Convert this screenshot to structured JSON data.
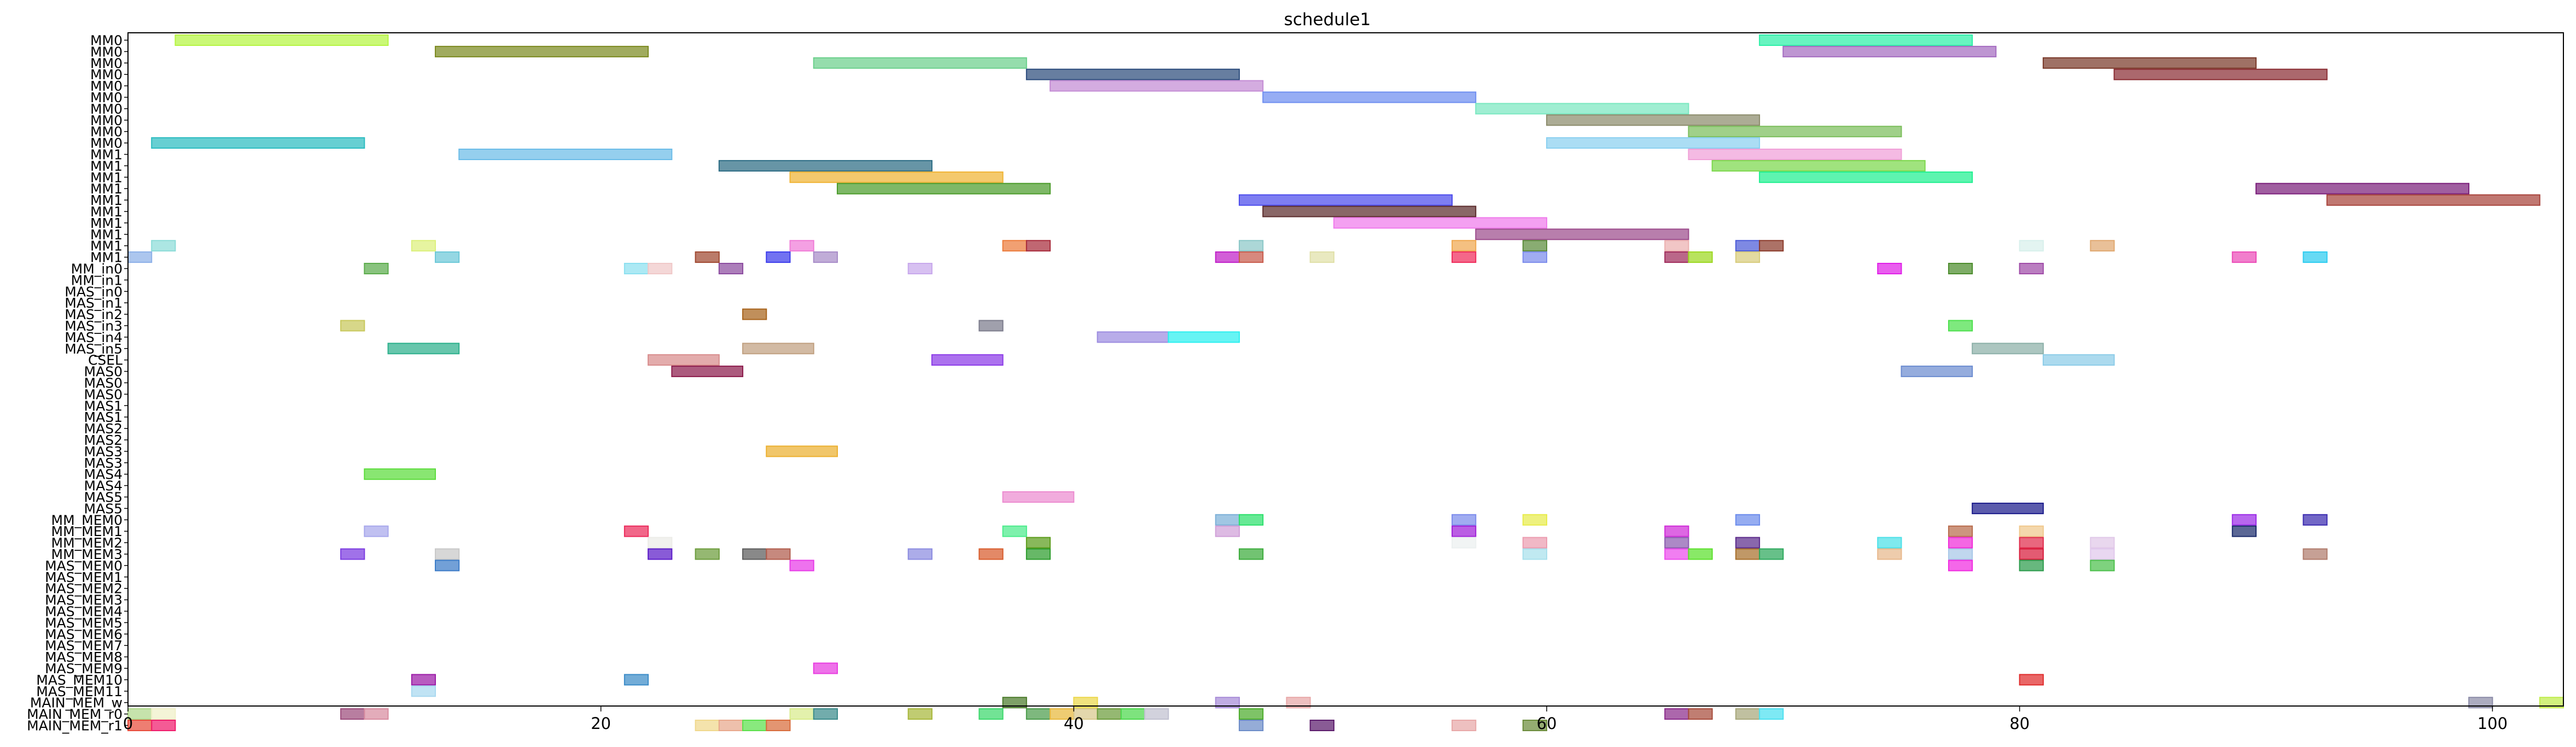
{
  "chart_data": {
    "type": "gantt",
    "title": "schedule1",
    "xlabel": "",
    "ylabel": "",
    "xlim": [
      0,
      103
    ],
    "x_ticks": [
      0,
      20,
      40,
      60,
      80,
      100
    ],
    "grid": false,
    "rows": [
      "MM0",
      "MM0",
      "MM0",
      "MM0",
      "MM0",
      "MM0",
      "MM0",
      "MM0",
      "MM0",
      "MM0",
      "MM1",
      "MM1",
      "MM1",
      "MM1",
      "MM1",
      "MM1",
      "MM1",
      "MM1",
      "MM1",
      "MM1",
      "MM_in0",
      "MM_in1",
      "MAS_in0",
      "MAS_in1",
      "MAS_in2",
      "MAS_in3",
      "MAS_in4",
      "MAS_in5",
      "CSEL",
      "MAS0",
      "MAS0",
      "MAS0",
      "MAS1",
      "MAS1",
      "MAS2",
      "MAS2",
      "MAS3",
      "MAS3",
      "MAS4",
      "MAS4",
      "MAS5",
      "MAS5",
      "MM_MEM0",
      "MM_MEM1",
      "MM_MEM2",
      "MM_MEM3",
      "MAS_MEM0",
      "MAS_MEM1",
      "MAS_MEM2",
      "MAS_MEM3",
      "MAS_MEM4",
      "MAS_MEM5",
      "MAS_MEM6",
      "MAS_MEM7",
      "MAS_MEM8",
      "MAS_MEM9",
      "MAS_MEM10",
      "MAS_MEM11",
      "MAIN_MEM_w",
      "MAIN_MEM_r0",
      "MAIN_MEM_r1"
    ],
    "bars": [
      {
        "row": 0,
        "start": 2,
        "end": 11,
        "color": "#b5f542"
      },
      {
        "row": 0,
        "start": 69,
        "end": 78,
        "color": "#2ef0a8"
      },
      {
        "row": 1,
        "start": 13,
        "end": 22,
        "color": "#7c8a20"
      },
      {
        "row": 1,
        "start": 70,
        "end": 79,
        "color": "#a56cc1"
      },
      {
        "row": 2,
        "start": 29,
        "end": 38,
        "color": "#6cd08c"
      },
      {
        "row": 2,
        "start": 81,
        "end": 90,
        "color": "#7a3a2a"
      },
      {
        "row": 3,
        "start": 38,
        "end": 47,
        "color": "#2c4c7c"
      },
      {
        "row": 3,
        "start": 84,
        "end": 93,
        "color": "#8b2e34"
      },
      {
        "row": 4,
        "start": 39,
        "end": 48,
        "color": "#c48cd4"
      },
      {
        "row": 5,
        "start": 48,
        "end": 57,
        "color": "#6e8ef0"
      },
      {
        "row": 6,
        "start": 57,
        "end": 66,
        "color": "#7ae8c0"
      },
      {
        "row": 7,
        "start": 60,
        "end": 69,
        "color": "#8c8c6c"
      },
      {
        "row": 8,
        "start": 66,
        "end": 75,
        "color": "#7cbe5c"
      },
      {
        "row": 9,
        "start": 1,
        "end": 10,
        "color": "#2cbcc0"
      },
      {
        "row": 9,
        "start": 60,
        "end": 69,
        "color": "#8ad0f0"
      },
      {
        "row": 10,
        "start": 14,
        "end": 23,
        "color": "#6cbce8"
      },
      {
        "row": 10,
        "start": 66,
        "end": 75,
        "color": "#f0a0d8"
      },
      {
        "row": 11,
        "start": 25,
        "end": 34,
        "color": "#2c6c84"
      },
      {
        "row": 11,
        "start": 67,
        "end": 76,
        "color": "#7cd84c"
      },
      {
        "row": 12,
        "start": 28,
        "end": 37,
        "color": "#f0b434"
      },
      {
        "row": 12,
        "start": 69,
        "end": 78,
        "color": "#20f090"
      },
      {
        "row": 13,
        "start": 30,
        "end": 39,
        "color": "#4c9c2c"
      },
      {
        "row": 13,
        "start": 90,
        "end": 99,
        "color": "#7c207c"
      },
      {
        "row": 14,
        "start": 47,
        "end": 56,
        "color": "#4c4cec"
      },
      {
        "row": 14,
        "start": 93,
        "end": 102,
        "color": "#a8443c"
      },
      {
        "row": 15,
        "start": 48,
        "end": 57,
        "color": "#5c2c2c"
      },
      {
        "row": 16,
        "start": 51,
        "end": 60,
        "color": "#f07cec"
      },
      {
        "row": 17,
        "start": 57,
        "end": 66,
        "color": "#9c4c8c"
      },
      {
        "row": 18,
        "start": 1,
        "end": 2,
        "color": "#8cdcd8"
      },
      {
        "row": 18,
        "start": 12,
        "end": 13,
        "color": "#dcf07c"
      },
      {
        "row": 18,
        "start": 28,
        "end": 29,
        "color": "#f07cd8"
      },
      {
        "row": 18,
        "start": 37,
        "end": 38,
        "color": "#ec7c3c"
      },
      {
        "row": 18,
        "start": 38,
        "end": 39,
        "color": "#a82c3c"
      },
      {
        "row": 18,
        "start": 47,
        "end": 48,
        "color": "#8cc8c8"
      },
      {
        "row": 18,
        "start": 56,
        "end": 57,
        "color": "#f0a850"
      },
      {
        "row": 18,
        "start": 59,
        "end": 60,
        "color": "#5c8c3c"
      },
      {
        "row": 18,
        "start": 65,
        "end": 66,
        "color": "#ecb0b0"
      },
      {
        "row": 18,
        "start": 68,
        "end": 69,
        "color": "#4c5cd8"
      },
      {
        "row": 18,
        "start": 69,
        "end": 70,
        "color": "#8c3c2c"
      },
      {
        "row": 18,
        "start": 80,
        "end": 81,
        "color": "#d8f0ec"
      },
      {
        "row": 18,
        "start": 83,
        "end": 84,
        "color": "#e0a870"
      },
      {
        "row": 19,
        "start": 0,
        "end": 1,
        "color": "#8cb0e8"
      },
      {
        "row": 19,
        "start": 13,
        "end": 14,
        "color": "#6cc8d8"
      },
      {
        "row": 19,
        "start": 24,
        "end": 25,
        "color": "#a04830"
      },
      {
        "row": 19,
        "start": 27,
        "end": 28,
        "color": "#3c3cec"
      },
      {
        "row": 19,
        "start": 29,
        "end": 30,
        "color": "#a88cc8"
      },
      {
        "row": 19,
        "start": 46,
        "end": 47,
        "color": "#c020c8"
      },
      {
        "row": 19,
        "start": 47,
        "end": 48,
        "color": "#c85c4c"
      },
      {
        "row": 19,
        "start": 50,
        "end": 51,
        "color": "#e0e0a8"
      },
      {
        "row": 19,
        "start": 56,
        "end": 57,
        "color": "#f02c5c"
      },
      {
        "row": 19,
        "start": 59,
        "end": 60,
        "color": "#7c8cec"
      },
      {
        "row": 19,
        "start": 65,
        "end": 66,
        "color": "#a02c5c"
      },
      {
        "row": 19,
        "start": 66,
        "end": 67,
        "color": "#9cd820"
      },
      {
        "row": 19,
        "start": 68,
        "end": 69,
        "color": "#d8cc7c"
      },
      {
        "row": 19,
        "start": 89,
        "end": 90,
        "color": "#ec4cb8"
      },
      {
        "row": 19,
        "start": 92,
        "end": 93,
        "color": "#2cccf0"
      },
      {
        "row": 20,
        "start": 10,
        "end": 11,
        "color": "#5cac4c"
      },
      {
        "row": 20,
        "start": 21,
        "end": 22,
        "color": "#8ce0f0"
      },
      {
        "row": 20,
        "start": 22,
        "end": 23,
        "color": "#f0c8c8"
      },
      {
        "row": 20,
        "start": 25,
        "end": 26,
        "color": "#8c4ca0"
      },
      {
        "row": 20,
        "start": 33,
        "end": 34,
        "color": "#c8a8ec"
      },
      {
        "row": 20,
        "start": 74,
        "end": 75,
        "color": "#e020e8"
      },
      {
        "row": 20,
        "start": 77,
        "end": 78,
        "color": "#4c8c2c"
      },
      {
        "row": 20,
        "start": 80,
        "end": 81,
        "color": "#a04ca8"
      },
      {
        "row": 24,
        "start": 26,
        "end": 27,
        "color": "#a8641c"
      },
      {
        "row": 25,
        "start": 9,
        "end": 10,
        "color": "#c8c85c"
      },
      {
        "row": 25,
        "start": 36,
        "end": 37,
        "color": "#7c7c8c"
      },
      {
        "row": 25,
        "start": 77,
        "end": 78,
        "color": "#4ce04c"
      },
      {
        "row": 26,
        "start": 41,
        "end": 44,
        "color": "#9c8ce0"
      },
      {
        "row": 26,
        "start": 44,
        "end": 47,
        "color": "#2cf0f0"
      },
      {
        "row": 27,
        "start": 11,
        "end": 14,
        "color": "#2cb08c"
      },
      {
        "row": 27,
        "start": 26,
        "end": 29,
        "color": "#c0a080"
      },
      {
        "row": 27,
        "start": 78,
        "end": 81,
        "color": "#8cb0a8"
      },
      {
        "row": 28,
        "start": 22,
        "end": 25,
        "color": "#d88c8c"
      },
      {
        "row": 28,
        "start": 34,
        "end": 37,
        "color": "#8c3ce8"
      },
      {
        "row": 28,
        "start": 81,
        "end": 84,
        "color": "#8ccce8"
      },
      {
        "row": 29,
        "start": 23,
        "end": 26,
        "color": "#8c1c4c"
      },
      {
        "row": 29,
        "start": 75,
        "end": 78,
        "color": "#6c8cd0"
      },
      {
        "row": 36,
        "start": 27,
        "end": 30,
        "color": "#ecb030"
      },
      {
        "row": 38,
        "start": 10,
        "end": 13,
        "color": "#5cdc3c"
      },
      {
        "row": 40,
        "start": 37,
        "end": 40,
        "color": "#ec8cd0"
      },
      {
        "row": 41,
        "start": 78,
        "end": 81,
        "color": "#1c1c8c"
      },
      {
        "row": 42,
        "start": 46,
        "end": 47,
        "color": "#7cb0d8"
      },
      {
        "row": 42,
        "start": 47,
        "end": 48,
        "color": "#2ce06c"
      },
      {
        "row": 42,
        "start": 56,
        "end": 57,
        "color": "#7c8cec"
      },
      {
        "row": 42,
        "start": 59,
        "end": 60,
        "color": "#e8ec4c"
      },
      {
        "row": 42,
        "start": 68,
        "end": 69,
        "color": "#6c8cec"
      },
      {
        "row": 42,
        "start": 89,
        "end": 90,
        "color": "#9c2ce8"
      },
      {
        "row": 42,
        "start": 92,
        "end": 93,
        "color": "#3c2cb0"
      },
      {
        "row": 43,
        "start": 10,
        "end": 11,
        "color": "#a8a8ec"
      },
      {
        "row": 43,
        "start": 21,
        "end": 22,
        "color": "#ec2c5c"
      },
      {
        "row": 43,
        "start": 37,
        "end": 38,
        "color": "#4cec8c"
      },
      {
        "row": 43,
        "start": 46,
        "end": 47,
        "color": "#d0a0d8"
      },
      {
        "row": 43,
        "start": 56,
        "end": 57,
        "color": "#a020d8"
      },
      {
        "row": 43,
        "start": 65,
        "end": 66,
        "color": "#d02cd8"
      },
      {
        "row": 43,
        "start": 77,
        "end": 78,
        "color": "#b86c4c"
      },
      {
        "row": 43,
        "start": 80,
        "end": 81,
        "color": "#f0c88c"
      },
      {
        "row": 43,
        "start": 89,
        "end": 90,
        "color": "#1c2c6c"
      },
      {
        "row": 44,
        "start": 22,
        "end": 23,
        "color": "#ecece8"
      },
      {
        "row": 44,
        "start": 38,
        "end": 39,
        "color": "#5c9c1c"
      },
      {
        "row": 44,
        "start": 56,
        "end": 57,
        "color": "#ecf0f0"
      },
      {
        "row": 44,
        "start": 59,
        "end": 60,
        "color": "#ec9cb0"
      },
      {
        "row": 44,
        "start": 65,
        "end": 66,
        "color": "#8c5cb0"
      },
      {
        "row": 44,
        "start": 68,
        "end": 69,
        "color": "#5c2c8c"
      },
      {
        "row": 44,
        "start": 74,
        "end": 75,
        "color": "#4ce0e8"
      },
      {
        "row": 44,
        "start": 77,
        "end": 78,
        "color": "#f02cd8"
      },
      {
        "row": 44,
        "start": 80,
        "end": 81,
        "color": "#e02c4c"
      },
      {
        "row": 44,
        "start": 83,
        "end": 84,
        "color": "#e0c8e8"
      },
      {
        "row": 45,
        "start": 9,
        "end": 10,
        "color": "#7c3ce0"
      },
      {
        "row": 45,
        "start": 13,
        "end": 14,
        "color": "#c8c8c8"
      },
      {
        "row": 45,
        "start": 22,
        "end": 23,
        "color": "#5c1cc8"
      },
      {
        "row": 45,
        "start": 24,
        "end": 25,
        "color": "#6c9c3c"
      },
      {
        "row": 45,
        "start": 26,
        "end": 27,
        "color": "#5c5c5c"
      },
      {
        "row": 45,
        "start": 27,
        "end": 28,
        "color": "#b05c4c"
      },
      {
        "row": 45,
        "start": 33,
        "end": 34,
        "color": "#8c8ce0"
      },
      {
        "row": 45,
        "start": 36,
        "end": 37,
        "color": "#d85c2c"
      },
      {
        "row": 45,
        "start": 38,
        "end": 39,
        "color": "#2c9c2c"
      },
      {
        "row": 45,
        "start": 47,
        "end": 48,
        "color": "#3cac3c"
      },
      {
        "row": 45,
        "start": 59,
        "end": 60,
        "color": "#a8e0ec"
      },
      {
        "row": 45,
        "start": 65,
        "end": 66,
        "color": "#ec4cec"
      },
      {
        "row": 45,
        "start": 66,
        "end": 67,
        "color": "#5ce02c"
      },
      {
        "row": 45,
        "start": 68,
        "end": 69,
        "color": "#a8702c"
      },
      {
        "row": 45,
        "start": 69,
        "end": 70,
        "color": "#2ca85c"
      },
      {
        "row": 45,
        "start": 74,
        "end": 75,
        "color": "#e8b88c"
      },
      {
        "row": 45,
        "start": 77,
        "end": 78,
        "color": "#a8c8e8"
      },
      {
        "row": 45,
        "start": 80,
        "end": 81,
        "color": "#d81c3c"
      },
      {
        "row": 45,
        "start": 83,
        "end": 84,
        "color": "#e0c8ec"
      },
      {
        "row": 45,
        "start": 92,
        "end": 93,
        "color": "#b07c6c"
      },
      {
        "row": 46,
        "start": 13,
        "end": 14,
        "color": "#3c7cc8"
      },
      {
        "row": 46,
        "start": 28,
        "end": 29,
        "color": "#e83ce8"
      },
      {
        "row": 46,
        "start": 77,
        "end": 78,
        "color": "#f02ce0"
      },
      {
        "row": 46,
        "start": 80,
        "end": 81,
        "color": "#2c9c4c"
      },
      {
        "row": 46,
        "start": 83,
        "end": 84,
        "color": "#4cc04c"
      },
      {
        "row": 55,
        "start": 29,
        "end": 30,
        "color": "#e83ce0"
      },
      {
        "row": 56,
        "start": 12,
        "end": 13,
        "color": "#9c1ca8"
      },
      {
        "row": 56,
        "start": 21,
        "end": 22,
        "color": "#3c8cc8"
      },
      {
        "row": 56,
        "start": 80,
        "end": 81,
        "color": "#e02c2c"
      },
      {
        "row": 57,
        "start": 12,
        "end": 13,
        "color": "#a8d8f0"
      },
      {
        "row": 58,
        "start": 37,
        "end": 38,
        "color": "#4c7c2c"
      },
      {
        "row": 58,
        "start": 40,
        "end": 41,
        "color": "#ecd84c"
      },
      {
        "row": 58,
        "start": 46,
        "end": 47,
        "color": "#a88cd8"
      },
      {
        "row": 58,
        "start": 49,
        "end": 50,
        "color": "#e8a8a8"
      },
      {
        "row": 58,
        "start": 99,
        "end": 100,
        "color": "#8c8ca8"
      },
      {
        "row": 58,
        "start": 102,
        "end": 103,
        "color": "#c0ec4c"
      },
      {
        "row": 59,
        "start": 0,
        "end": 1,
        "color": "#b0d88c"
      },
      {
        "row": 59,
        "start": 1,
        "end": 2,
        "color": "#f0f0c8"
      },
      {
        "row": 59,
        "start": 9,
        "end": 10,
        "color": "#9c4c7c"
      },
      {
        "row": 59,
        "start": 10,
        "end": 11,
        "color": "#d88ca0"
      },
      {
        "row": 59,
        "start": 28,
        "end": 29,
        "color": "#d8ec8c"
      },
      {
        "row": 59,
        "start": 29,
        "end": 30,
        "color": "#3c8c8c"
      },
      {
        "row": 59,
        "start": 33,
        "end": 34,
        "color": "#a8b83c"
      },
      {
        "row": 59,
        "start": 36,
        "end": 37,
        "color": "#3cd86c"
      },
      {
        "row": 59,
        "start": 38,
        "end": 39,
        "color": "#4c9c4c"
      },
      {
        "row": 59,
        "start": 39,
        "end": 40,
        "color": "#e8b83c"
      },
      {
        "row": 59,
        "start": 40,
        "end": 41,
        "color": "#d8c88c"
      },
      {
        "row": 59,
        "start": 41,
        "end": 42,
        "color": "#6c9c3c"
      },
      {
        "row": 59,
        "start": 42,
        "end": 43,
        "color": "#4cd84c"
      },
      {
        "row": 59,
        "start": 43,
        "end": 44,
        "color": "#c0c0d0"
      },
      {
        "row": 59,
        "start": 47,
        "end": 48,
        "color": "#4cac2c"
      },
      {
        "row": 59,
        "start": 65,
        "end": 66,
        "color": "#8c2c8c"
      },
      {
        "row": 59,
        "start": 66,
        "end": 67,
        "color": "#a84c3c"
      },
      {
        "row": 59,
        "start": 68,
        "end": 69,
        "color": "#a8a87c"
      },
      {
        "row": 59,
        "start": 69,
        "end": 70,
        "color": "#4ce0f0"
      },
      {
        "row": 60,
        "start": 0,
        "end": 1,
        "color": "#e84c3c"
      },
      {
        "row": 60,
        "start": 1,
        "end": 2,
        "color": "#f01c6c"
      },
      {
        "row": 60,
        "start": 24,
        "end": 25,
        "color": "#f0d88c"
      },
      {
        "row": 60,
        "start": 25,
        "end": 26,
        "color": "#e8a88c"
      },
      {
        "row": 60,
        "start": 26,
        "end": 27,
        "color": "#5ce04c"
      },
      {
        "row": 60,
        "start": 27,
        "end": 28,
        "color": "#d86c3c"
      },
      {
        "row": 60,
        "start": 47,
        "end": 48,
        "color": "#6c8cc8"
      },
      {
        "row": 60,
        "start": 50,
        "end": 51,
        "color": "#5c1c6c"
      },
      {
        "row": 60,
        "start": 56,
        "end": 57,
        "color": "#e8a8a8"
      },
      {
        "row": 60,
        "start": 59,
        "end": 60,
        "color": "#6c8c3c"
      }
    ]
  }
}
